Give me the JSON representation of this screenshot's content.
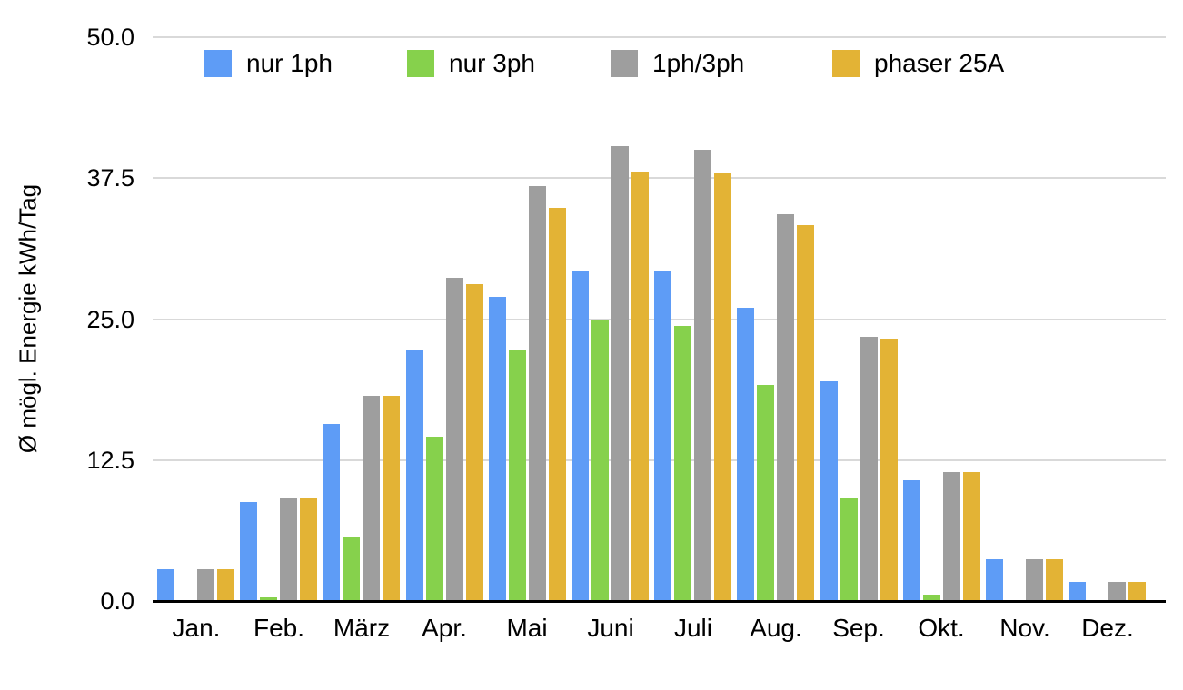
{
  "chart_data": {
    "type": "bar",
    "title": "",
    "xlabel": "",
    "ylabel": "Ø mögl. Energie kWh/Tag",
    "ylim": [
      0,
      50
    ],
    "yticks": [
      0,
      12.5,
      25,
      37.5,
      50
    ],
    "ytick_labels": [
      "0.0",
      "12.5",
      "25.0",
      "37.5",
      "50.0"
    ],
    "grid": true,
    "legend_position": "top",
    "categories": [
      "Jan.",
      "Feb.",
      "März",
      "Apr.",
      "Mai",
      "Juni",
      "Juli",
      "Aug.",
      "Sep.",
      "Okt.",
      "Nov.",
      "Dez."
    ],
    "series": [
      {
        "name": "nur 1ph",
        "color": "#5e9cf6",
        "values": [
          2.8,
          8.8,
          15.7,
          22.3,
          27.0,
          29.3,
          29.2,
          26.0,
          19.5,
          10.7,
          3.7,
          1.7
        ]
      },
      {
        "name": "nur 3ph",
        "color": "#86d14c",
        "values": [
          0,
          0.3,
          5.6,
          14.6,
          22.3,
          24.9,
          24.4,
          19.2,
          9.2,
          0.6,
          0,
          0
        ]
      },
      {
        "name": "1ph/3ph",
        "color": "#9e9e9e",
        "values": [
          2.8,
          9.2,
          18.2,
          28.7,
          36.8,
          40.3,
          40.0,
          34.3,
          23.4,
          11.4,
          3.7,
          1.7
        ]
      },
      {
        "name": "phaser 25A",
        "color": "#e3b335",
        "values": [
          2.8,
          9.2,
          18.2,
          28.1,
          34.9,
          38.1,
          38.0,
          33.3,
          23.3,
          11.4,
          3.7,
          1.7
        ]
      }
    ],
    "colors": {
      "gridline": "#d9d9d9",
      "axis": "#000000",
      "text": "#000000",
      "background": "#ffffff"
    }
  }
}
